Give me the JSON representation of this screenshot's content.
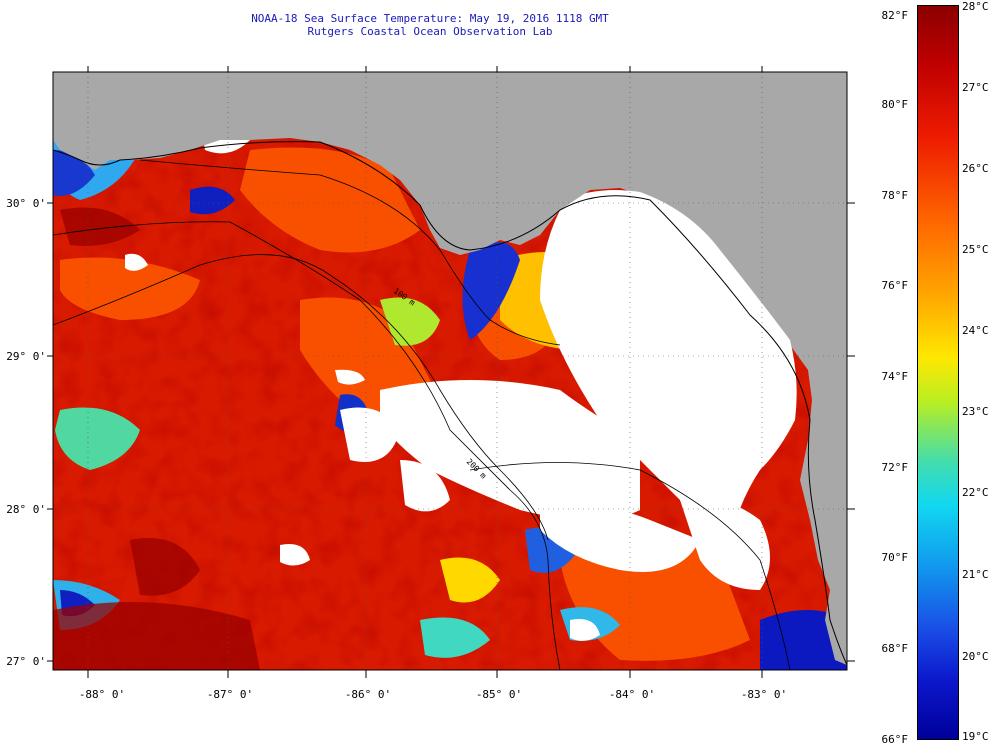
{
  "title": "NOAA-18 Sea Surface Temperature:  May 19, 2016 1118 GMT",
  "subtitle": "Rutgers Coastal Ocean Observation Lab",
  "latitude_labels": [
    "30° 0'",
    "29° 0'",
    "28° 0'",
    "27° 0'"
  ],
  "longitude_labels": [
    "-88° 0'",
    "-87° 0'",
    "-86° 0'",
    "-85° 0'",
    "-84° 0'",
    "-83° 0'"
  ],
  "map_extent": {
    "lon_min": -88.3,
    "lon_max": -82.4,
    "lat_min": 26.95,
    "lat_max": 30.85
  },
  "contour_labels": [
    "100 m",
    "200 m"
  ],
  "colorbar": {
    "fahrenheit_labels": [
      "82°F",
      "80°F",
      "78°F",
      "76°F",
      "74°F",
      "72°F",
      "70°F",
      "68°F",
      "66°F"
    ],
    "celsius_labels": [
      "28°C",
      "27°C",
      "26°C",
      "25°C",
      "24°C",
      "23°C",
      "22°C",
      "21°C",
      "20°C",
      "19°C"
    ],
    "min_c": 19,
    "max_c": 28
  },
  "colors": {
    "land": "#a8a8a8",
    "cloud": "#ffffff",
    "warm": "#d81a00",
    "cold": "#1020c0",
    "title": "#1a1ab8"
  }
}
